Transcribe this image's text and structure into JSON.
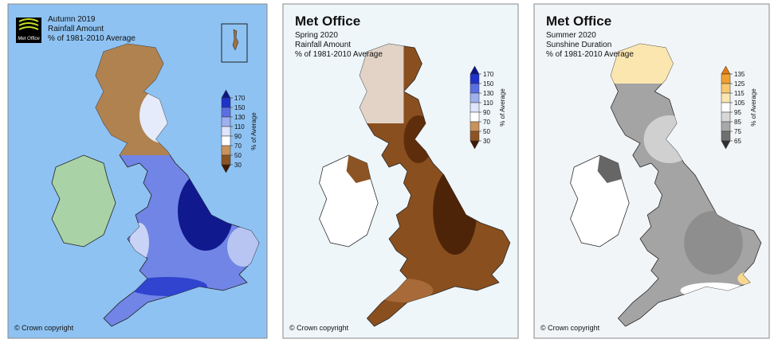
{
  "panels": [
    {
      "logo": "Met Office",
      "title": [
        "Autumn 2019",
        "Rainfall Amount",
        "% of 1981-2010 Average"
      ],
      "legend": {
        "label": "% of Average",
        "ticks": [
          170,
          150,
          130,
          110,
          90,
          70,
          50,
          30
        ],
        "colors": [
          "#0b1685",
          "#1f33c9",
          "#5a6fe2",
          "#9fb0ef",
          "#dfe5fb",
          "#ffffff",
          "#c8925a",
          "#8c5424",
          "#3e1a06"
        ]
      },
      "copyright": "© Crown copyright"
    },
    {
      "logo": "Met Office",
      "title": [
        "Spring 2020",
        "Rainfall Amount",
        "% of 1981-2010 Average"
      ],
      "legend": {
        "label": "% of Average",
        "ticks": [
          170,
          150,
          130,
          110,
          90,
          70,
          50,
          30
        ],
        "colors": [
          "#0b1685",
          "#1f33c9",
          "#5a6fe2",
          "#9fb0ef",
          "#dfe5fb",
          "#ffffff",
          "#c8925a",
          "#8c5424",
          "#3e1a06"
        ]
      },
      "copyright": "© Crown copyright"
    },
    {
      "logo": "Met Office",
      "title": [
        "Summer 2020",
        "Sunshine Duration",
        "% of 1981-2010 Average"
      ],
      "legend": {
        "label": "% of Average",
        "ticks": [
          135,
          125,
          115,
          105,
          95,
          85,
          75,
          65
        ],
        "colors": [
          "#e07c10",
          "#f0a030",
          "#f8c870",
          "#fbe6b0",
          "#ffffff",
          "#d8d8d8",
          "#a8a8a8",
          "#707070",
          "#303030"
        ]
      },
      "copyright": "© Crown copyright"
    }
  ]
}
